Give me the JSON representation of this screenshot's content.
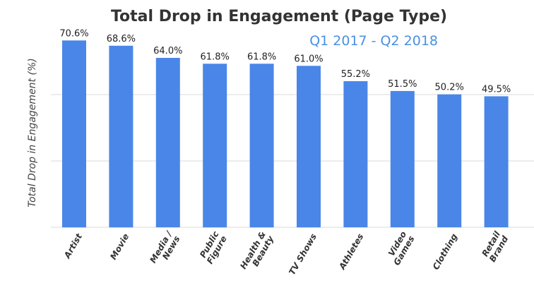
{
  "chart_data": {
    "type": "bar",
    "title": "Total Drop in Engagement (Page Type)",
    "subtitle": "Q1 2017 - Q2 2018",
    "xlabel": "",
    "ylabel": "Total Drop in Engagement (%)",
    "categories": [
      [
        "Artist"
      ],
      [
        "Movie"
      ],
      [
        "Media /",
        "News"
      ],
      [
        "Public",
        "Figure"
      ],
      [
        "Health &",
        "Beauty"
      ],
      [
        "TV Shows"
      ],
      [
        "Athletes"
      ],
      [
        "Video",
        "Games"
      ],
      [
        "Clothing"
      ],
      [
        "Retail",
        "Brand"
      ]
    ],
    "values": [
      70.6,
      68.6,
      64.0,
      61.8,
      61.8,
      61.0,
      55.2,
      51.5,
      50.2,
      49.5
    ],
    "value_labels": [
      "70.6%",
      "68.6%",
      "64.0%",
      "61.8%",
      "61.8%",
      "61.0%",
      "55.2%",
      "51.5%",
      "50.2%",
      "49.5%"
    ],
    "ylim": [
      0,
      72
    ],
    "grid": true,
    "bar_color": "#4a86e8",
    "gridline_color": "#e6e6e6"
  }
}
